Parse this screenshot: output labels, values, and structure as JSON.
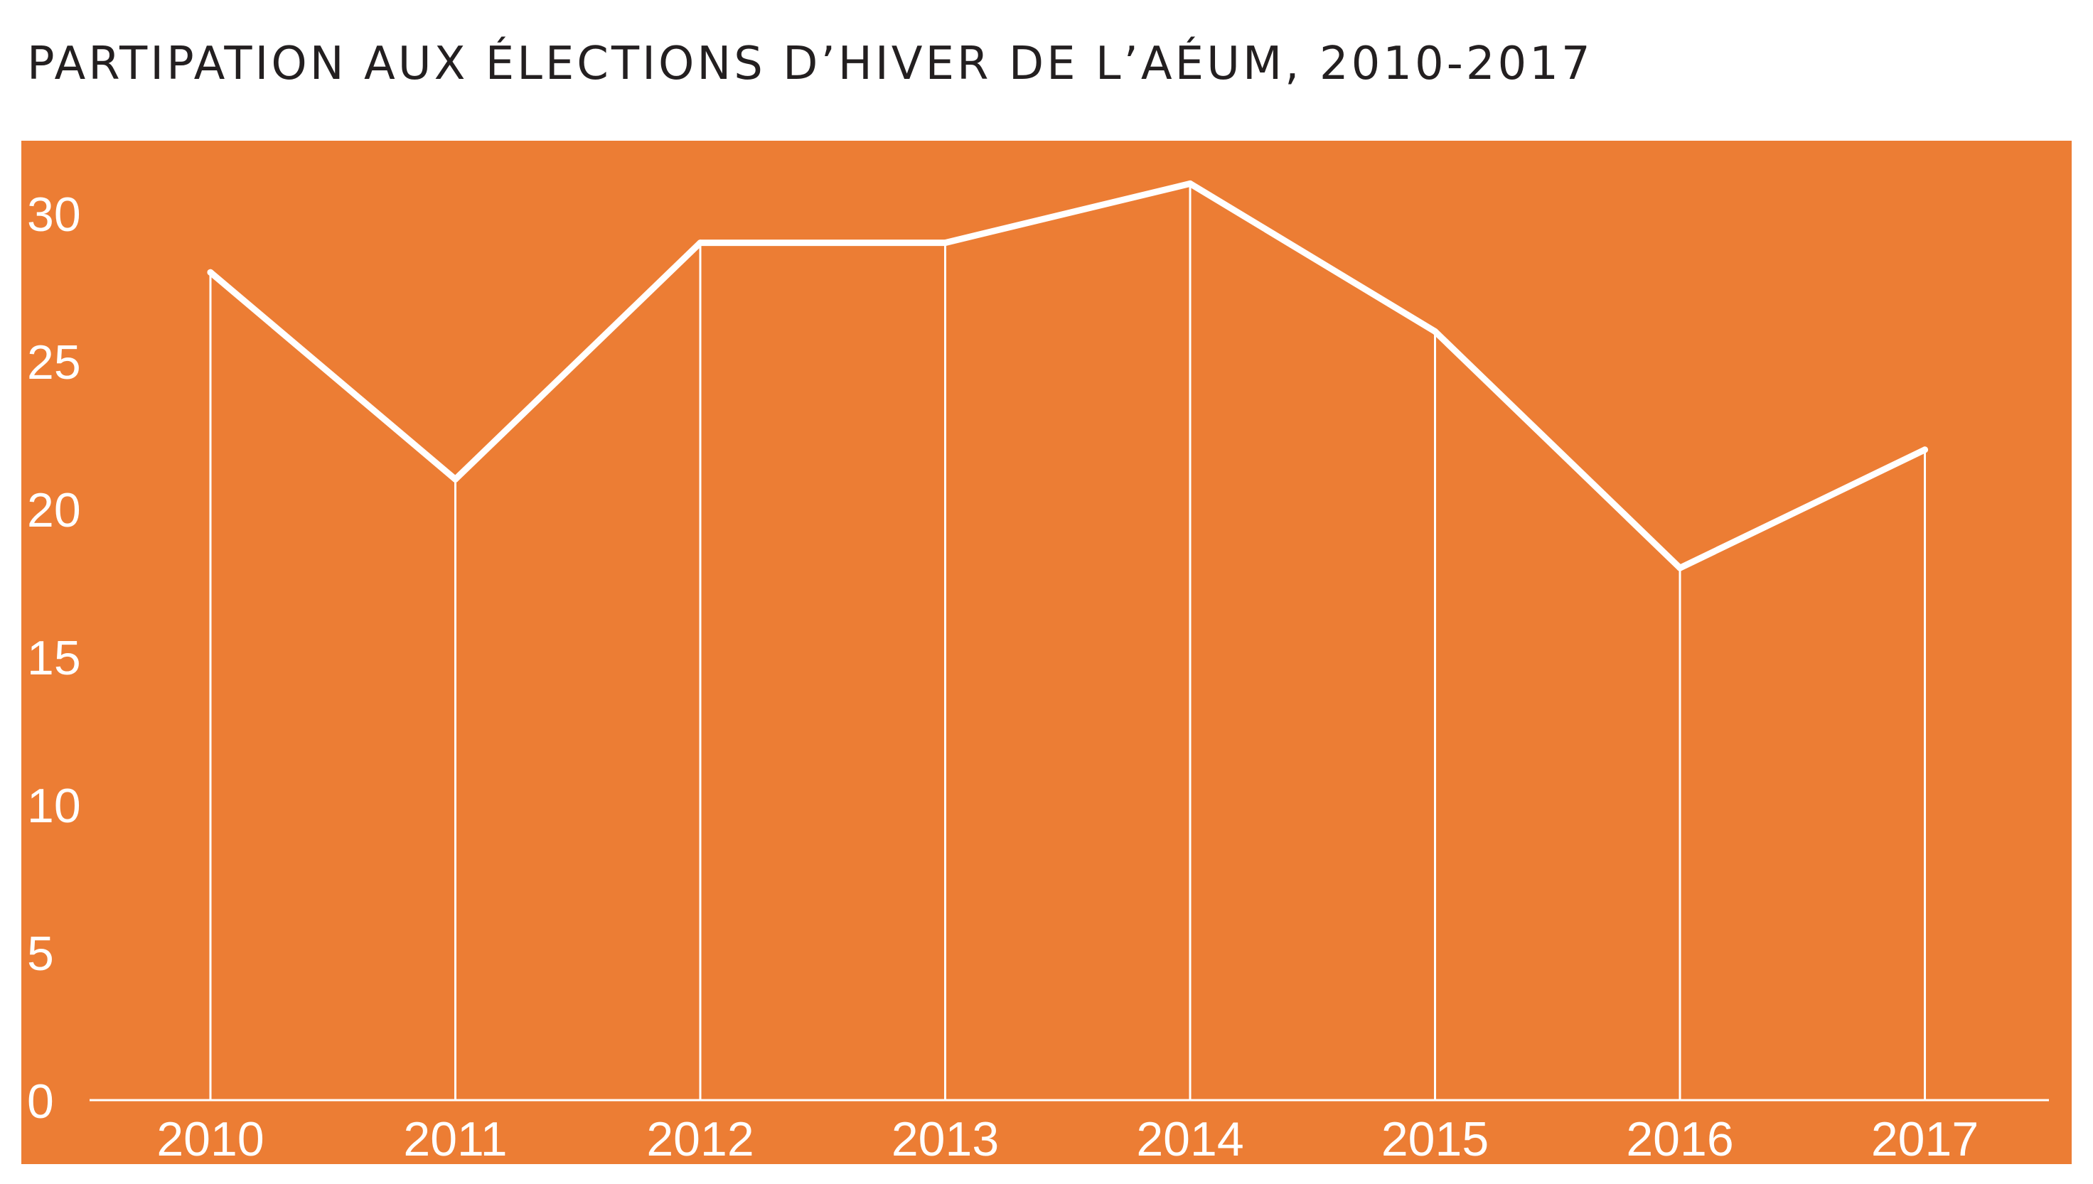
{
  "chart_data": {
    "type": "area",
    "title": "Partipation aux élections d’hiver de l’AÉUM, 2010-2017",
    "xlabel": "",
    "ylabel": "",
    "categories": [
      "2010",
      "2011",
      "2012",
      "2013",
      "2014",
      "2015",
      "2016",
      "2017"
    ],
    "values": [
      28,
      21,
      29,
      29,
      31,
      26,
      18,
      22
    ],
    "ylim": [
      0,
      31
    ],
    "yticks": [
      0,
      5,
      10,
      15,
      20,
      25,
      30
    ],
    "grid": false,
    "legend": "none",
    "colors": {
      "panel": "#ec7d34",
      "line": "#ffffff",
      "title": "#231f20"
    }
  }
}
